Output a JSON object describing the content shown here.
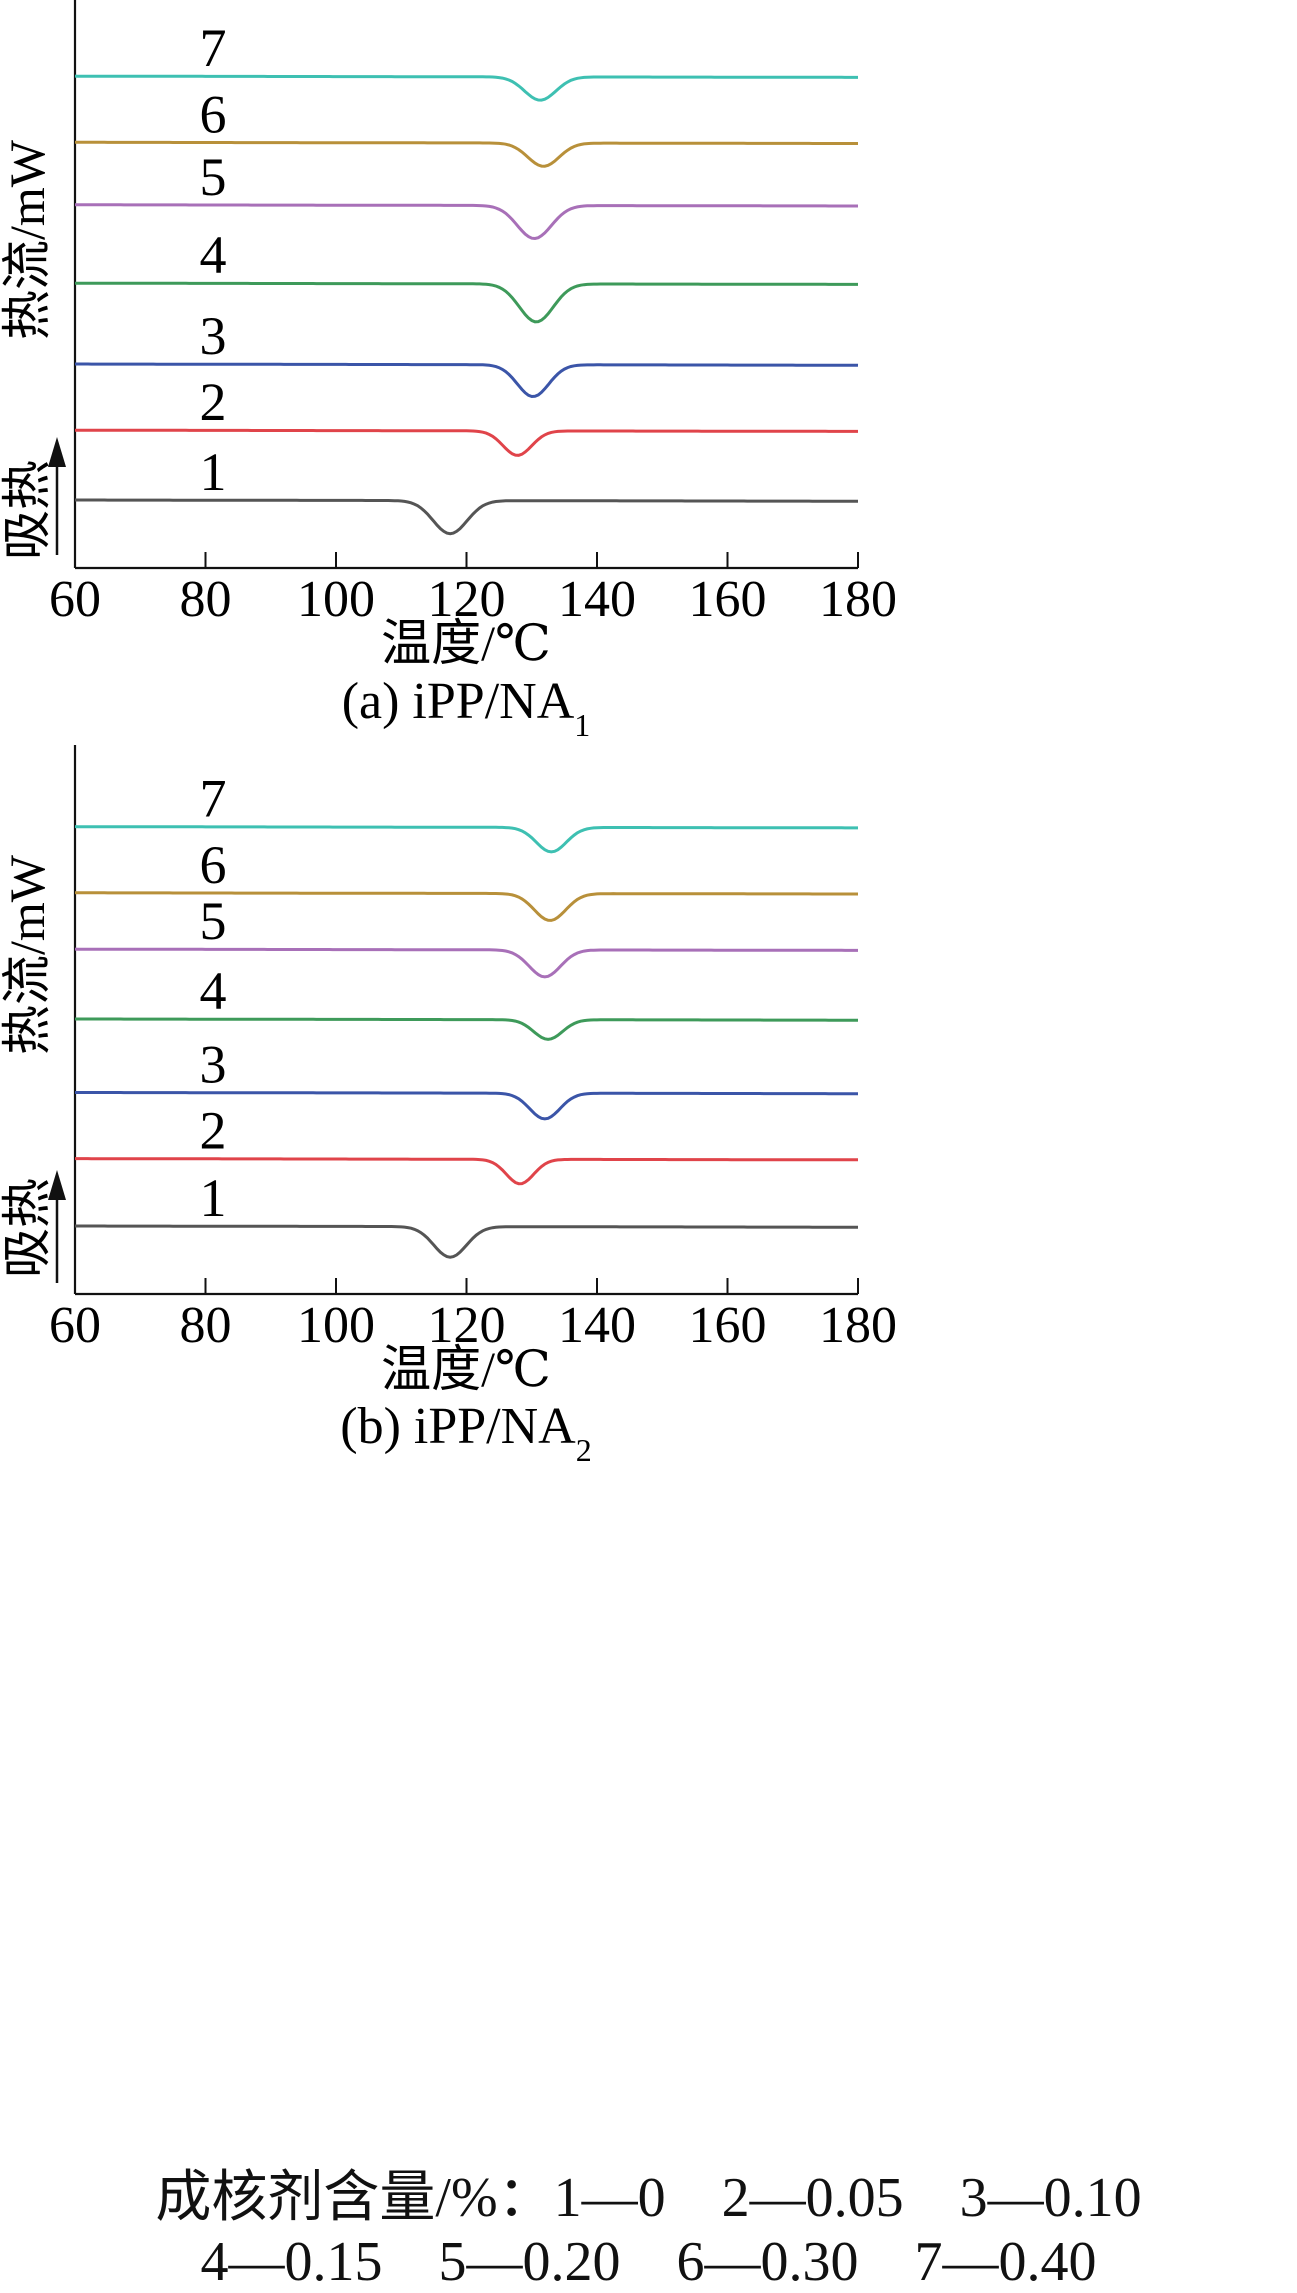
{
  "chart_data": [
    {
      "type": "line",
      "caption_main": "(a) iPP/NA",
      "caption_sub": "1",
      "xlabel": "温度/℃",
      "ylabel": "热流/mW",
      "endotherm_label": "吸热",
      "xlim": [
        60,
        180
      ],
      "xticks": [
        "60",
        "80",
        "100",
        "120",
        "140",
        "160",
        "180"
      ],
      "grid": false,
      "series": [
        {
          "name": "1",
          "color": "#555555",
          "baseline": 0,
          "peak_x": 117.5,
          "depth": 1.35,
          "sigma": 2.6
        },
        {
          "name": "2",
          "color": "#e0444a",
          "baseline": 2.85,
          "peak_x": 127.8,
          "depth": 1.0,
          "sigma": 2.2
        },
        {
          "name": "3",
          "color": "#3b55a8",
          "baseline": 5.55,
          "peak_x": 130.2,
          "depth": 1.3,
          "sigma": 2.4
        },
        {
          "name": "4",
          "color": "#3e9a5a",
          "baseline": 8.85,
          "peak_x": 130.7,
          "depth": 1.55,
          "sigma": 2.6
        },
        {
          "name": "5",
          "color": "#a870b8",
          "baseline": 12.05,
          "peak_x": 130.4,
          "depth": 1.35,
          "sigma": 2.6
        },
        {
          "name": "6",
          "color": "#b8903a",
          "baseline": 14.6,
          "peak_x": 131.8,
          "depth": 0.95,
          "sigma": 2.4
        },
        {
          "name": "7",
          "color": "#3ec0b2",
          "baseline": 17.3,
          "peak_x": 131.3,
          "depth": 0.95,
          "sigma": 2.4
        }
      ]
    },
    {
      "type": "line",
      "caption_main": "(b) iPP/NA",
      "caption_sub": "2",
      "xlabel": "温度/℃",
      "ylabel": "热流/mW",
      "endotherm_label": "吸热",
      "xlim": [
        60,
        180
      ],
      "xticks": [
        "60",
        "80",
        "100",
        "120",
        "140",
        "160",
        "180"
      ],
      "grid": false,
      "series": [
        {
          "name": "1",
          "color": "#555555",
          "baseline": 0,
          "peak_x": 117.5,
          "depth": 1.25,
          "sigma": 2.5
        },
        {
          "name": "2",
          "color": "#e0444a",
          "baseline": 2.75,
          "peak_x": 128.2,
          "depth": 1.0,
          "sigma": 2.1
        },
        {
          "name": "3",
          "color": "#3b55a8",
          "baseline": 5.45,
          "peak_x": 132.0,
          "depth": 1.05,
          "sigma": 2.3
        },
        {
          "name": "4",
          "color": "#3e9a5a",
          "baseline": 8.45,
          "peak_x": 132.5,
          "depth": 0.8,
          "sigma": 2.2
        },
        {
          "name": "5",
          "color": "#a870b8",
          "baseline": 11.3,
          "peak_x": 132.0,
          "depth": 1.1,
          "sigma": 2.4
        },
        {
          "name": "6",
          "color": "#b8903a",
          "baseline": 13.6,
          "peak_x": 132.8,
          "depth": 1.1,
          "sigma": 2.4
        },
        {
          "name": "7",
          "color": "#3ec0b2",
          "baseline": 16.3,
          "peak_x": 133.0,
          "depth": 1.0,
          "sigma": 2.3
        }
      ]
    }
  ],
  "legend": {
    "line1": "成核剂含量/%：1—0　2—0.05　3—0.10",
    "line2": "4—0.15　5—0.20　6—0.30　7—0.40"
  }
}
